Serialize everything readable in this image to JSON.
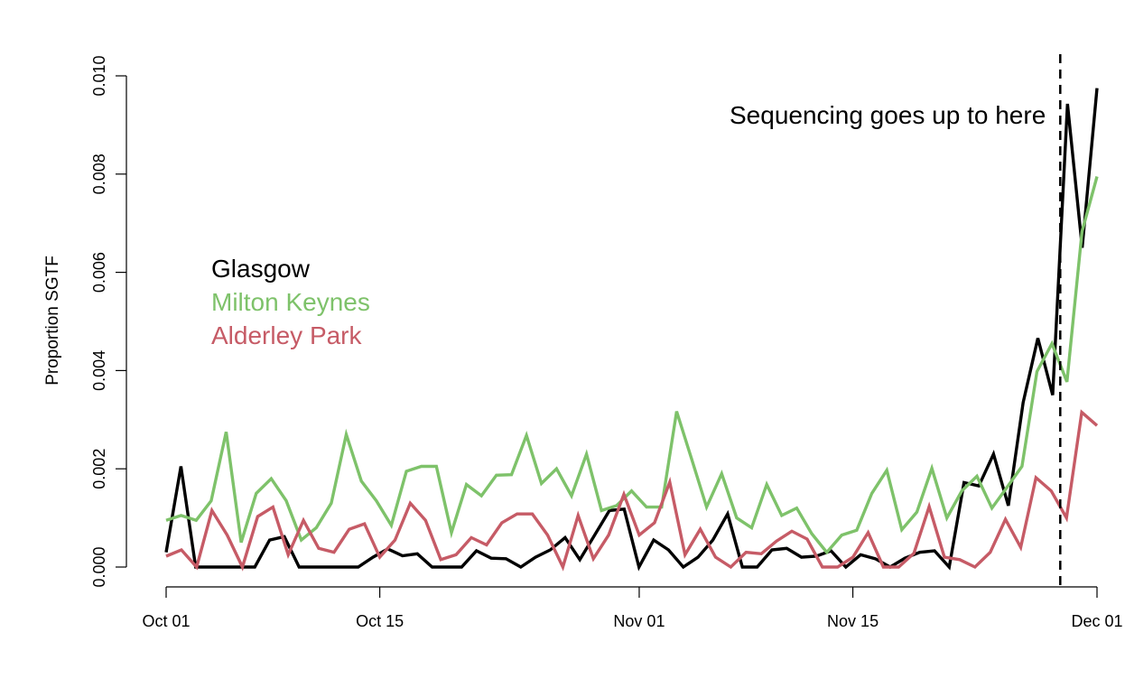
{
  "chart_data": {
    "type": "line",
    "ylabel": "Proportion SGTF",
    "ylim": [
      0,
      0.01
    ],
    "yticks": [
      "0.000",
      "0.002",
      "0.004",
      "0.006",
      "0.008",
      "0.010"
    ],
    "xticks": [
      "Oct 01",
      "Oct 15",
      "Nov 01",
      "Nov 15",
      "Dec 01"
    ],
    "annotation": "Sequencing goes up to here",
    "annotation_x": "2020-11-28",
    "x_start": "2020-10-01",
    "x_end": "2020-12-01",
    "series": [
      {
        "name": "Glasgow",
        "color": "#000000",
        "values": [
          0.0003,
          0.00205,
          0.0,
          0.0,
          0.0,
          0.0,
          0.0,
          0.00055,
          0.00062,
          0.0,
          0.0,
          0.0,
          0.0,
          0.0,
          0.0002,
          0.00037,
          0.00023,
          0.00027,
          0.0,
          0.0,
          0.0,
          0.00033,
          0.00018,
          0.00017,
          0.0,
          0.0002,
          0.00035,
          0.0006,
          0.00015,
          0.00065,
          0.00115,
          0.00118,
          0.0,
          0.00055,
          0.00035,
          0.0,
          0.0002,
          0.00055,
          0.00108,
          0.0,
          0.0,
          0.00035,
          0.00038,
          0.0002,
          0.00022,
          0.00033,
          0.0,
          0.00025,
          0.00017,
          0.0,
          0.00018,
          0.0003,
          0.00033,
          0.0,
          0.00172,
          0.00165,
          0.0023,
          0.00125,
          0.00335,
          0.00466,
          0.0035,
          0.00943,
          0.0065,
          0.00975
        ]
      },
      {
        "name": "Milton Keynes",
        "color": "#7ec26a",
        "values": [
          0.00095,
          0.00105,
          0.00095,
          0.00135,
          0.00275,
          0.0005,
          0.0015,
          0.0018,
          0.00135,
          0.00055,
          0.0008,
          0.0013,
          0.0027,
          0.00175,
          0.00135,
          0.00085,
          0.00195,
          0.00205,
          0.00205,
          0.0007,
          0.00168,
          0.00145,
          0.00187,
          0.00188,
          0.00268,
          0.0017,
          0.002,
          0.00145,
          0.0023,
          0.00115,
          0.00125,
          0.00155,
          0.00122,
          0.00122,
          0.00317,
          0.0022,
          0.00122,
          0.0019,
          0.001,
          0.0008,
          0.00168,
          0.00105,
          0.0012,
          0.00068,
          0.0003,
          0.00065,
          0.00075,
          0.0015,
          0.00197,
          0.00076,
          0.00112,
          0.00201,
          0.001,
          0.00155,
          0.00185,
          0.0012,
          0.00162,
          0.00205,
          0.00398,
          0.00455,
          0.00377,
          0.00683,
          0.00795
        ]
      },
      {
        "name": "Alderley Park",
        "color": "#c65b66",
        "values": [
          0.00022,
          0.00035,
          0.0,
          0.00115,
          0.00065,
          0.0,
          0.00103,
          0.00122,
          0.00025,
          0.00095,
          0.00038,
          0.0003,
          0.00077,
          0.00088,
          0.0002,
          0.00055,
          0.0013,
          0.00095,
          0.00015,
          0.00025,
          0.0006,
          0.00045,
          0.0009,
          0.00108,
          0.00108,
          0.00065,
          0.0,
          0.00105,
          0.00017,
          0.00065,
          0.00148,
          0.00065,
          0.0009,
          0.00173,
          0.00025,
          0.00077,
          0.0002,
          0.0,
          0.0003,
          0.00027,
          0.00053,
          0.00073,
          0.00057,
          0.0,
          0.0,
          0.0002,
          0.0007,
          0.0,
          0.0,
          0.00028,
          0.00123,
          0.0002,
          0.00015,
          0.0,
          0.0003,
          0.00097,
          0.0004,
          0.00182,
          0.00155,
          0.001,
          0.00315,
          0.00288
        ]
      }
    ]
  }
}
